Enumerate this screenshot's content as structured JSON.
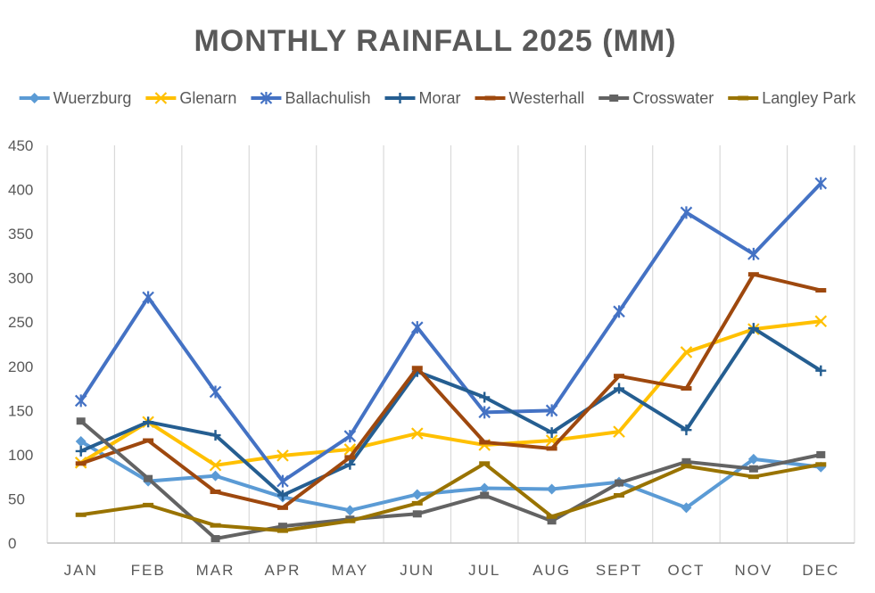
{
  "chart_data": {
    "type": "line",
    "title": "MONTHLY RAINFALL 2025 (MM)",
    "xlabel": "",
    "ylabel": "",
    "ylim": [
      0,
      450
    ],
    "yticks": [
      0,
      50,
      100,
      150,
      200,
      250,
      300,
      350,
      400,
      450
    ],
    "grid": "vertical",
    "legend_position": "top",
    "categories": [
      "JAN",
      "FEB",
      "MAR",
      "APR",
      "MAY",
      "JUN",
      "JUL",
      "AUG",
      "SEPT",
      "OCT",
      "NOV",
      "DEC"
    ],
    "series": [
      {
        "name": "Wuerzburg",
        "color": "#5B9BD5",
        "marker": "diamond",
        "values": [
          115,
          70,
          76,
          52,
          37,
          55,
          62,
          61,
          69,
          40,
          95,
          86
        ]
      },
      {
        "name": "Glenarn",
        "color": "#FFC000",
        "marker": "x",
        "values": [
          91,
          137,
          88,
          99,
          106,
          124,
          111,
          116,
          126,
          216,
          242,
          251
        ]
      },
      {
        "name": "Ballachulish",
        "color": "#4472C4",
        "marker": "star",
        "values": [
          161,
          278,
          171,
          70,
          121,
          244,
          148,
          150,
          262,
          374,
          327,
          407
        ]
      },
      {
        "name": "Morar",
        "color": "#255E91",
        "marker": "plus",
        "values": [
          104,
          137,
          122,
          54,
          89,
          194,
          165,
          125,
          175,
          128,
          243,
          195
        ]
      },
      {
        "name": "Westerhall",
        "color": "#9E480E",
        "marker": "dash",
        "values": [
          90,
          116,
          58,
          40,
          97,
          198,
          114,
          107,
          189,
          175,
          304,
          286
        ]
      },
      {
        "name": "Crosswater",
        "color": "#636363",
        "marker": "square",
        "values": [
          138,
          73,
          5,
          19,
          27,
          33,
          54,
          25,
          68,
          92,
          84,
          100
        ]
      },
      {
        "name": "Langley Park",
        "color": "#997300",
        "marker": "dash",
        "values": [
          32,
          43,
          20,
          14,
          25,
          45,
          90,
          30,
          54,
          87,
          75,
          89
        ]
      }
    ]
  }
}
